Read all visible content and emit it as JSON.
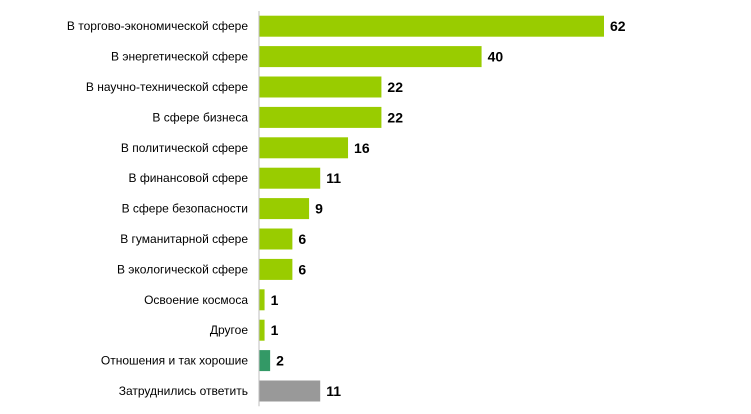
{
  "chart_data": {
    "type": "bar",
    "orientation": "horizontal",
    "categories": [
      "В торгово-экономической сфере",
      "В энергетической сфере",
      "В научно-технической сфере",
      "В сфере бизнеса",
      "В политической сфере",
      "В финансовой сфере",
      "В сфере безопасности",
      "В гуманитарной сфере",
      "В экологической сфере",
      "Освоение космоса",
      "Другое",
      "Отношения и так хорошие",
      "Затруднились ответить"
    ],
    "values": [
      62,
      40,
      22,
      22,
      16,
      11,
      9,
      6,
      6,
      1,
      1,
      2,
      11
    ],
    "bar_colors": [
      "#99cc00",
      "#99cc00",
      "#99cc00",
      "#99cc00",
      "#99cc00",
      "#99cc00",
      "#99cc00",
      "#99cc00",
      "#99cc00",
      "#99cc00",
      "#99cc00",
      "#339966",
      "#999999"
    ],
    "xlim": [
      0,
      62
    ],
    "title": "",
    "xlabel": "",
    "ylabel": "",
    "grid": false,
    "legend": "none",
    "data_labels": true
  }
}
